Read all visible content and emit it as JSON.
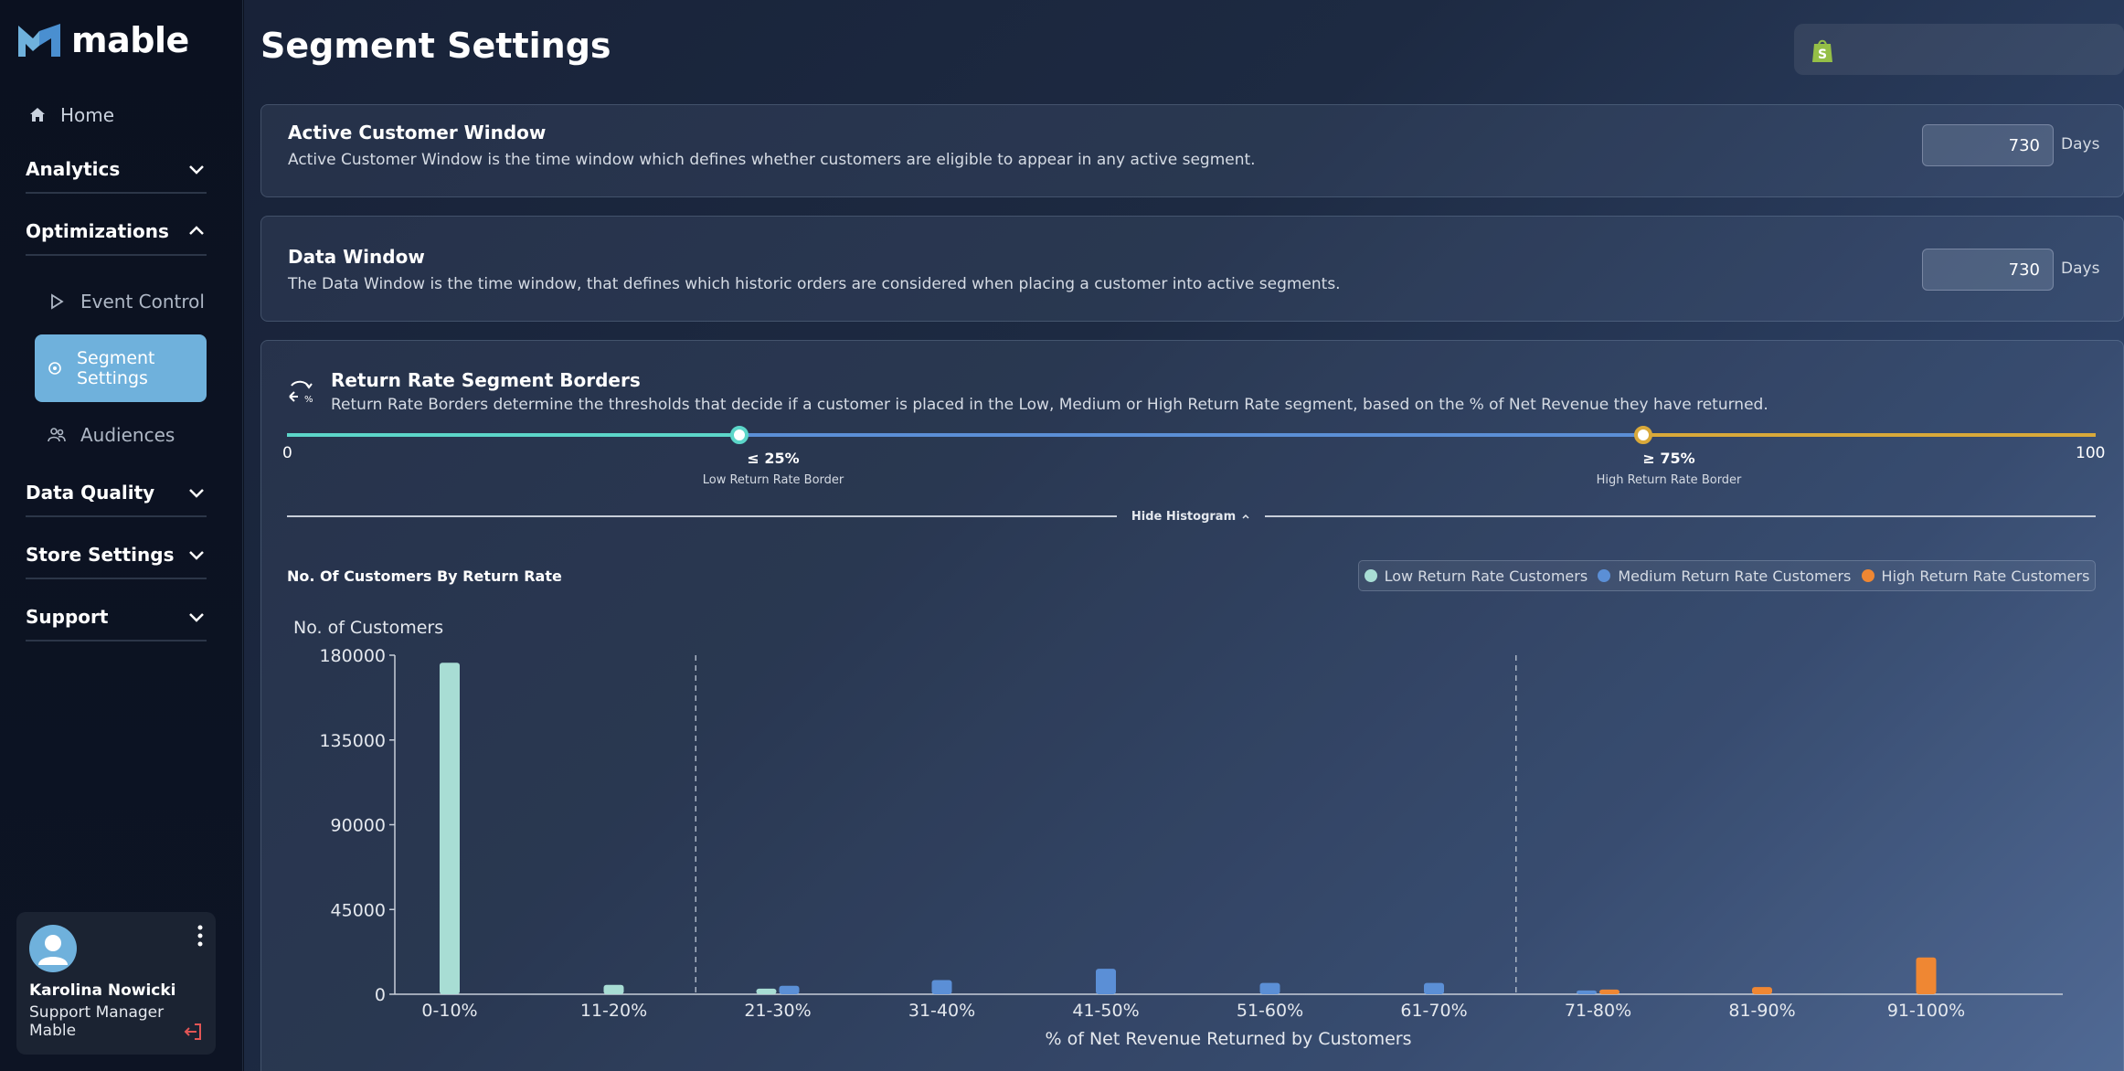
{
  "app": {
    "brand": "mable"
  },
  "sidebar": {
    "home": "Home",
    "sections": [
      "Analytics",
      "Optimizations",
      "Data Quality",
      "Store Settings",
      "Support"
    ],
    "optimization_items": {
      "event_control": "Event Control",
      "segment_settings": "Segment Settings",
      "audiences": "Audiences"
    },
    "user": {
      "name": "Karolina Nowicki",
      "role": "Support Manager Mable"
    }
  },
  "header": {
    "title": "Segment Settings"
  },
  "active_window": {
    "title": "Active Customer Window",
    "description": "Active Customer Window is the time window which defines whether customers are eligible to appear in any active segment.",
    "value": "730",
    "unit": "Days"
  },
  "data_window": {
    "title": "Data Window",
    "description": "The Data Window is the time window, that defines which historic orders are considered when placing a customer into active segments.",
    "value": "730",
    "unit": "Days"
  },
  "borders": {
    "title": "Return Rate Segment Borders",
    "description": "Return Rate Borders determine the thresholds that decide if a customer is placed in the Low, Medium or High Return Rate segment, based on the % of Net Revenue they have returned.",
    "min": "0",
    "max": "100",
    "low_value": 25,
    "high_value": 75,
    "low_label": "≤ 25%",
    "low_caption": "Low Return Rate Border",
    "high_label": "≥ 75%",
    "high_caption": "High Return Rate Border",
    "toggle": "Hide Histogram"
  },
  "colors": {
    "low": "#a8ddd4",
    "medium": "#5b8fd6",
    "high": "#ef8733",
    "slider_low": "#5cd6c9",
    "slider_mid": "#5b8fd6",
    "slider_high": "#d9a93a"
  },
  "chart_data": {
    "type": "bar",
    "title": "No. Of Customers By Return Rate",
    "ylabel": "No. of Customers",
    "xlabel": "% of Net Revenue Returned by Customers",
    "ylim": [
      0,
      180000
    ],
    "yticks": [
      0,
      45000,
      90000,
      135000,
      180000
    ],
    "categories": [
      "0-10%",
      "11-20%",
      "21-30%",
      "31-40%",
      "41-50%",
      "51-60%",
      "61-70%",
      "71-80%",
      "81-90%",
      "91-100%"
    ],
    "series": [
      {
        "name": "Low Return Rate Customers",
        "values": [
          176000,
          5000,
          3000,
          0,
          0,
          0,
          0,
          0,
          0,
          0
        ]
      },
      {
        "name": "Medium Return Rate Customers",
        "values": [
          0,
          0,
          4500,
          7500,
          13500,
          6000,
          6000,
          2000,
          0,
          0
        ]
      },
      {
        "name": "High Return Rate Customers",
        "values": [
          0,
          0,
          0,
          0,
          0,
          0,
          0,
          2500,
          3800,
          19500
        ]
      }
    ],
    "border_lines": [
      "21-30%",
      "71-80%"
    ],
    "legend": "top-right",
    "grid": false
  }
}
